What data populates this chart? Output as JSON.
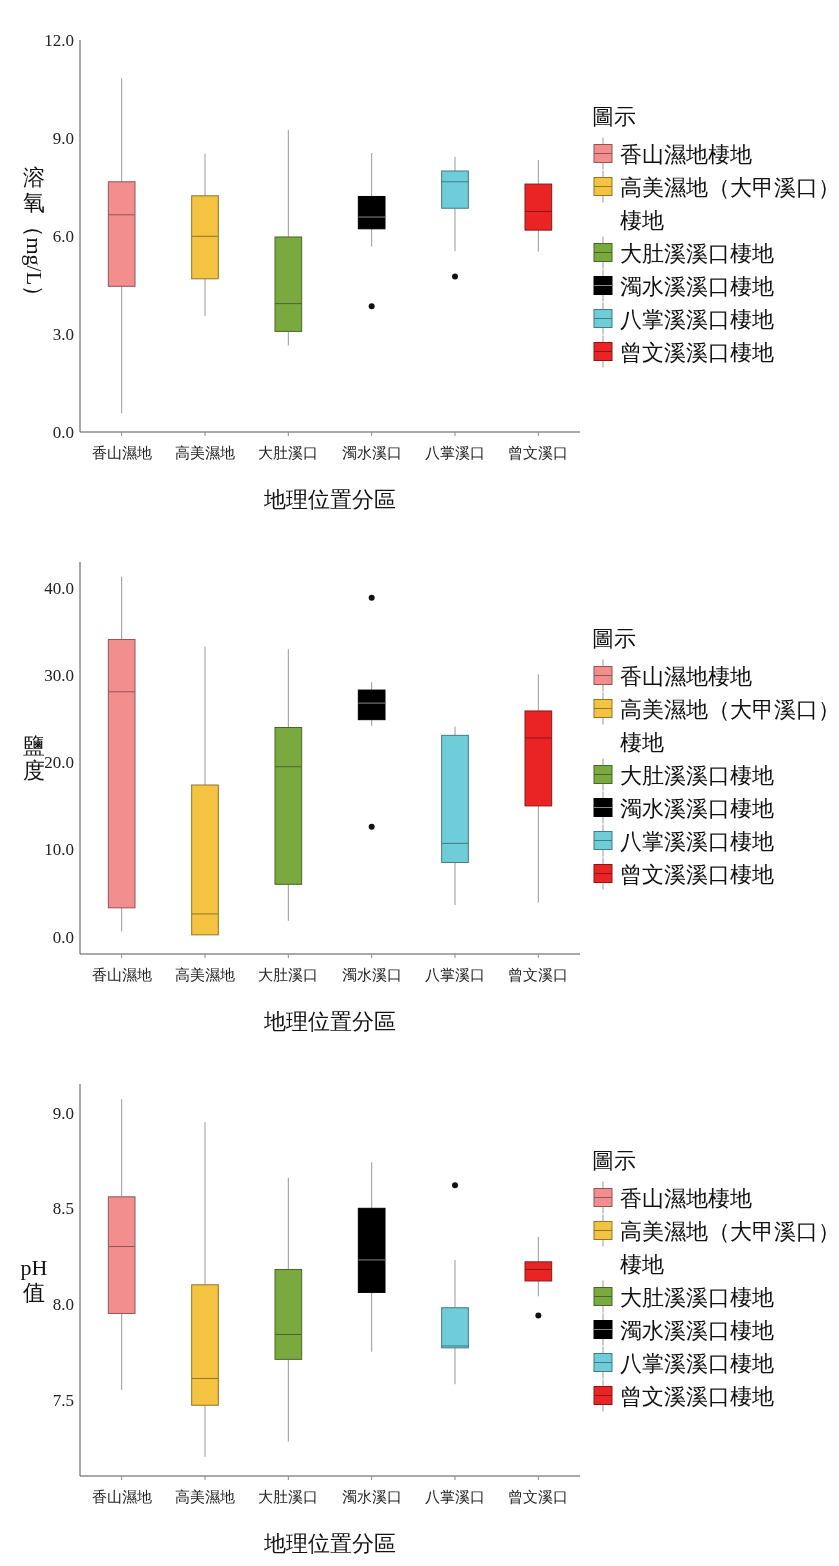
{
  "chart_data": [
    {
      "type": "box",
      "ylabel": "溶氧（mg/L）",
      "xlabel": "地理位置分區",
      "legend_title": "圖示",
      "legend": "right",
      "categories": [
        "香山濕地",
        "高美濕地",
        "大肚溪口",
        "濁水溪口",
        "八掌溪口",
        "曾文溪口"
      ],
      "ylim": [
        0,
        12
      ],
      "yticks": [
        {
          "value": 0,
          "label": "0.0"
        },
        {
          "value": 3,
          "label": "3.0"
        },
        {
          "value": 6,
          "label": "6.0"
        },
        {
          "value": 9,
          "label": "9.0"
        },
        {
          "value": 12,
          "label": "12.0"
        }
      ],
      "series": [
        {
          "name": "香山濕地棲地",
          "color": "#f28e8e",
          "boxes": [
            {
              "low": 0.57,
              "q1": 4.46,
              "median": 6.65,
              "q3": 7.66,
              "high": 10.83
            },
            null,
            null,
            null,
            null,
            null
          ]
        },
        {
          "name": "高美濕地（大甲溪口）棲地",
          "color": "#f5c342",
          "boxes": [
            null,
            {
              "low": 3.55,
              "q1": 4.69,
              "median": 5.99,
              "q3": 7.23,
              "high": 8.52
            },
            null,
            null,
            null,
            null
          ]
        },
        {
          "name": "大肚溪溪口棲地",
          "color": "#7aaa3f",
          "boxes": [
            null,
            null,
            {
              "low": 2.65,
              "q1": 3.08,
              "median": 3.93,
              "q3": 5.97,
              "high": 9.25
            },
            null,
            null,
            null
          ]
        },
        {
          "name": "濁水溪溪口棲地",
          "color": "#000000",
          "boxes": [
            null,
            null,
            null,
            {
              "low": 5.68,
              "q1": 6.22,
              "median": 6.58,
              "q3": 7.21,
              "high": 8.54,
              "outliers": [
                3.85
              ]
            },
            null,
            null
          ]
        },
        {
          "name": "八掌溪溪口棲地",
          "color": "#6ecdd8",
          "boxes": [
            null,
            null,
            null,
            null,
            {
              "low": 5.54,
              "q1": 6.85,
              "median": 7.66,
              "q3": 7.99,
              "high": 8.42,
              "outliers": [
                4.76
              ]
            },
            null
          ]
        },
        {
          "name": "曾文溪溪口棲地",
          "color": "#ea2424",
          "boxes": [
            null,
            null,
            null,
            null,
            null,
            {
              "low": 5.52,
              "q1": 6.18,
              "median": 6.75,
              "q3": 7.59,
              "high": 8.33
            }
          ]
        }
      ]
    },
    {
      "type": "box",
      "ylabel": "鹽度",
      "xlabel": "地理位置分區",
      "legend_title": "圖示",
      "legend": "right",
      "categories": [
        "香山濕地",
        "高美濕地",
        "大肚溪口",
        "濁水溪口",
        "八掌溪口",
        "曾文溪口"
      ],
      "ylim": [
        -2,
        43
      ],
      "yticks": [
        {
          "value": 0,
          "label": "0.0"
        },
        {
          "value": 10,
          "label": "10.0"
        },
        {
          "value": 20,
          "label": "20.0"
        },
        {
          "value": 30,
          "label": "30.0"
        },
        {
          "value": 40,
          "label": "40.0"
        }
      ],
      "series": [
        {
          "name": "香山濕地棲地",
          "color": "#f28e8e",
          "boxes": [
            {
              "low": 0.6,
              "q1": 3.3,
              "median": 28.1,
              "q3": 34.1,
              "high": 41.3
            },
            null,
            null,
            null,
            null,
            null
          ]
        },
        {
          "name": "高美濕地（大甲溪口）棲地",
          "color": "#f5c342",
          "boxes": [
            null,
            {
              "low": 0.2,
              "q1": 0.2,
              "median": 2.6,
              "q3": 17.4,
              "high": 33.3
            },
            null,
            null,
            null,
            null
          ]
        },
        {
          "name": "大肚溪溪口棲地",
          "color": "#7aaa3f",
          "boxes": [
            null,
            null,
            {
              "low": 1.8,
              "q1": 6.0,
              "median": 19.5,
              "q3": 24.0,
              "high": 33.0
            },
            null,
            null,
            null
          ]
        },
        {
          "name": "濁水溪溪口棲地",
          "color": "#000000",
          "boxes": [
            null,
            null,
            null,
            {
              "low": 24.2,
              "q1": 24.9,
              "median": 26.8,
              "q3": 28.3,
              "high": 29.2,
              "outliers": [
                38.9,
                12.6
              ]
            },
            null,
            null
          ]
        },
        {
          "name": "八掌溪溪口棲地",
          "color": "#6ecdd8",
          "boxes": [
            null,
            null,
            null,
            null,
            {
              "low": 3.6,
              "q1": 8.5,
              "median": 10.7,
              "q3": 23.1,
              "high": 24.1
            },
            null
          ]
        },
        {
          "name": "曾文溪溪口棲地",
          "color": "#ea2424",
          "boxes": [
            null,
            null,
            null,
            null,
            null,
            {
              "low": 3.9,
              "q1": 15.0,
              "median": 22.8,
              "q3": 25.9,
              "high": 30.1
            }
          ]
        }
      ]
    },
    {
      "type": "box",
      "ylabel": "pH值",
      "xlabel": "地理位置分區",
      "legend_title": "圖示",
      "legend": "right",
      "categories": [
        "香山濕地",
        "高美濕地",
        "大肚溪口",
        "濁水溪口",
        "八掌溪口",
        "曾文溪口"
      ],
      "ylim": [
        7.1,
        9.15
      ],
      "yticks": [
        {
          "value": 7.5,
          "label": "7.5"
        },
        {
          "value": 8,
          "label": "8.0"
        },
        {
          "value": 8.5,
          "label": "8.5"
        },
        {
          "value": 9,
          "label": "9.0"
        }
      ],
      "series": [
        {
          "name": "香山濕地棲地",
          "color": "#f28e8e",
          "boxes": [
            {
              "low": 7.55,
              "q1": 7.95,
              "median": 8.3,
              "q3": 8.56,
              "high": 9.07
            },
            null,
            null,
            null,
            null,
            null
          ]
        },
        {
          "name": "高美濕地（大甲溪口）棲地",
          "color": "#f5c342",
          "boxes": [
            null,
            {
              "low": 7.2,
              "q1": 7.47,
              "median": 7.61,
              "q3": 8.1,
              "high": 8.95
            },
            null,
            null,
            null,
            null
          ]
        },
        {
          "name": "大肚溪溪口棲地",
          "color": "#7aaa3f",
          "boxes": [
            null,
            null,
            {
              "low": 7.28,
              "q1": 7.71,
              "median": 7.84,
              "q3": 8.18,
              "high": 8.66
            },
            null,
            null,
            null
          ]
        },
        {
          "name": "濁水溪溪口棲地",
          "color": "#000000",
          "boxes": [
            null,
            null,
            null,
            {
              "low": 7.75,
              "q1": 8.06,
              "median": 8.23,
              "q3": 8.5,
              "high": 8.74
            },
            null,
            null
          ]
        },
        {
          "name": "八掌溪溪口棲地",
          "color": "#6ecdd8",
          "boxes": [
            null,
            null,
            null,
            null,
            {
              "low": 7.58,
              "q1": 7.77,
              "median": 7.78,
              "q3": 7.98,
              "high": 8.23,
              "outliers": [
                8.62
              ]
            },
            null
          ]
        },
        {
          "name": "曾文溪溪口棲地",
          "color": "#ea2424",
          "boxes": [
            null,
            null,
            null,
            null,
            null,
            {
              "low": 8.04,
              "q1": 8.12,
              "median": 8.18,
              "q3": 8.22,
              "high": 8.35,
              "outliers": [
                7.94
              ]
            }
          ]
        }
      ]
    }
  ]
}
